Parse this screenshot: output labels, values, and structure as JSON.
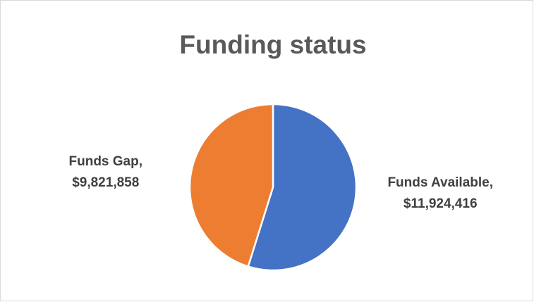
{
  "chart_data": {
    "type": "pie",
    "title": "Funding status",
    "categories": [
      "Funds Available,",
      "Funds Gap,"
    ],
    "values": [
      11924416,
      9821858
    ],
    "value_labels": [
      "$11,924,416",
      "$9,821,858"
    ],
    "colors": [
      "#4472c4",
      "#ed7d31"
    ]
  }
}
